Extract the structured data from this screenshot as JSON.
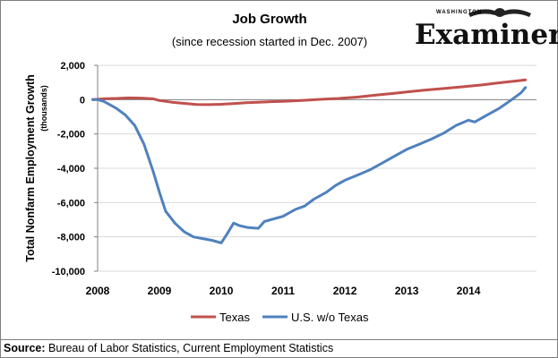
{
  "header": {
    "title": "Job Growth",
    "subtitle": "(since recession started in Dec. 2007)"
  },
  "logo": {
    "top_text": "WASHINGTON",
    "main_text": "Examiner"
  },
  "source": {
    "label": "Source:",
    "text": " Bureau of Labor Statistics, Current Employment Statistics"
  },
  "colors": {
    "texas": "#c0504d",
    "us": "#4f81bd",
    "grid": "#d9d9d9",
    "axis": "#808080"
  },
  "chart_data": {
    "type": "line",
    "title": "Job Growth",
    "subtitle": "(since recession started in Dec. 2007)",
    "xlabel": "",
    "ylabel": "Total Nonfarm Employment Growth",
    "ylabel_sub": "(thousands)",
    "ylim": [
      -10000,
      2000
    ],
    "xlim": [
      2008,
      2015.1
    ],
    "y_ticks": [
      2000,
      0,
      -2000,
      -4000,
      -6000,
      -8000,
      -10000
    ],
    "y_tick_labels": [
      "2,000",
      "0",
      "-2,000",
      "-4,000",
      "-6,000",
      "-8,000",
      "-10,000"
    ],
    "x_ticks": [
      2008,
      2009,
      2010,
      2011,
      2012,
      2013,
      2014
    ],
    "x_tick_labels": [
      "2008",
      "2009",
      "2010",
      "2011",
      "2012",
      "2013",
      "2014"
    ],
    "grid": true,
    "legend_position": "bottom",
    "series": [
      {
        "name": "Texas",
        "x": [
          2007.92,
          2008.1,
          2008.3,
          2008.5,
          2008.7,
          2008.9,
          2009.0,
          2009.2,
          2009.4,
          2009.6,
          2009.8,
          2010.0,
          2010.2,
          2010.4,
          2010.6,
          2010.8,
          2011.0,
          2011.3,
          2011.6,
          2011.9,
          2012.2,
          2012.5,
          2012.8,
          2013.0,
          2013.3,
          2013.6,
          2013.9,
          2014.2,
          2014.5,
          2014.8,
          2014.92
        ],
        "values": [
          0,
          50,
          70,
          100,
          90,
          50,
          -50,
          -150,
          -220,
          -280,
          -290,
          -270,
          -230,
          -180,
          -150,
          -120,
          -100,
          -50,
          20,
          70,
          150,
          270,
          370,
          450,
          560,
          650,
          750,
          850,
          980,
          1100,
          1150
        ]
      },
      {
        "name": "U.S. w/o Texas",
        "x": [
          2007.92,
          2008.0,
          2008.1,
          2008.2,
          2008.3,
          2008.45,
          2008.6,
          2008.75,
          2008.9,
          2009.0,
          2009.1,
          2009.25,
          2009.4,
          2009.55,
          2009.7,
          2009.85,
          2010.0,
          2010.1,
          2010.2,
          2010.3,
          2010.42,
          2010.6,
          2010.7,
          2010.8,
          2011.0,
          2011.2,
          2011.35,
          2011.5,
          2011.7,
          2011.85,
          2012.0,
          2012.2,
          2012.4,
          2012.6,
          2012.8,
          2013.0,
          2013.2,
          2013.4,
          2013.6,
          2013.8,
          2014.0,
          2014.1,
          2014.3,
          2014.5,
          2014.7,
          2014.85,
          2014.92
        ],
        "values": [
          0,
          0,
          -100,
          -300,
          -500,
          -900,
          -1500,
          -2600,
          -4200,
          -5400,
          -6500,
          -7200,
          -7700,
          -8000,
          -8100,
          -8200,
          -8350,
          -7800,
          -7200,
          -7350,
          -7450,
          -7500,
          -7100,
          -7000,
          -6800,
          -6400,
          -6200,
          -5800,
          -5400,
          -5000,
          -4700,
          -4400,
          -4100,
          -3700,
          -3300,
          -2900,
          -2600,
          -2300,
          -1950,
          -1500,
          -1200,
          -1300,
          -900,
          -500,
          0,
          400,
          700
        ]
      }
    ]
  }
}
